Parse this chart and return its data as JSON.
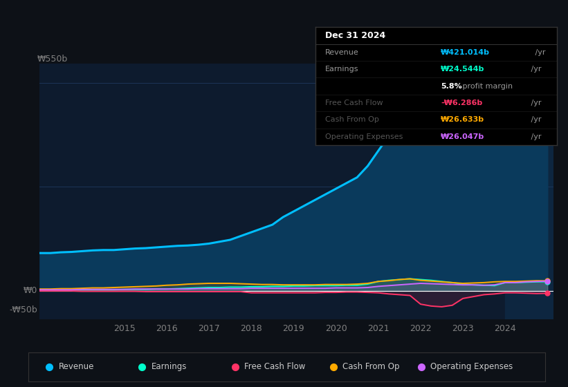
{
  "bg_color": "#0d1117",
  "plot_bg_color": "#0d1b2e",
  "grid_color": "#1e3a5f",
  "text_color": "#808080",
  "title_color": "#ffffff",
  "years": [
    2013.0,
    2013.25,
    2013.5,
    2013.75,
    2014.0,
    2014.25,
    2014.5,
    2014.75,
    2015.0,
    2015.25,
    2015.5,
    2015.75,
    2016.0,
    2016.25,
    2016.5,
    2016.75,
    2017.0,
    2017.25,
    2017.5,
    2017.75,
    2018.0,
    2018.25,
    2018.5,
    2018.75,
    2019.0,
    2019.25,
    2019.5,
    2019.75,
    2020.0,
    2020.25,
    2020.5,
    2020.75,
    2021.0,
    2021.25,
    2021.5,
    2021.75,
    2022.0,
    2022.25,
    2022.5,
    2022.75,
    2023.0,
    2023.25,
    2023.5,
    2023.75,
    2024.0,
    2024.25,
    2024.5,
    2024.75,
    2025.0
  ],
  "revenue": [
    100,
    100,
    102,
    103,
    105,
    107,
    108,
    108,
    110,
    112,
    113,
    115,
    117,
    119,
    120,
    122,
    125,
    130,
    135,
    145,
    155,
    165,
    175,
    195,
    210,
    225,
    240,
    255,
    270,
    285,
    300,
    330,
    370,
    410,
    450,
    500,
    560,
    570,
    550,
    510,
    460,
    440,
    430,
    420,
    400,
    400,
    405,
    415,
    421
  ],
  "earnings": [
    2,
    2,
    2,
    2,
    3,
    3,
    3,
    3,
    4,
    4,
    4,
    5,
    5,
    6,
    7,
    8,
    9,
    9,
    10,
    10,
    11,
    11,
    12,
    12,
    13,
    13,
    14,
    14,
    14,
    15,
    15,
    18,
    25,
    28,
    30,
    32,
    30,
    28,
    25,
    22,
    18,
    16,
    15,
    14,
    22,
    22,
    23,
    24,
    24.5
  ],
  "free_cash_flow": [
    0,
    0,
    0,
    0,
    -1,
    -1,
    -1,
    -1,
    -1,
    -1,
    -2,
    -2,
    -2,
    -2,
    -2,
    -2,
    -2,
    -2,
    -2,
    -2,
    -5,
    -5,
    -5,
    -5,
    -5,
    -5,
    -5,
    -4,
    -4,
    -3,
    -3,
    -4,
    -5,
    -8,
    -10,
    -12,
    -35,
    -40,
    -42,
    -38,
    -20,
    -15,
    -10,
    -8,
    -5,
    -5,
    -6,
    -7,
    -6.3
  ],
  "cash_from_op": [
    5,
    5,
    6,
    6,
    7,
    8,
    8,
    9,
    10,
    11,
    12,
    13,
    15,
    16,
    18,
    19,
    20,
    20,
    20,
    19,
    18,
    17,
    17,
    16,
    16,
    16,
    16,
    17,
    17,
    17,
    18,
    20,
    25,
    27,
    30,
    32,
    28,
    26,
    24,
    22,
    20,
    21,
    22,
    24,
    25,
    25,
    26,
    27,
    26.6
  ],
  "operating_expenses": [
    3,
    3,
    3,
    3,
    4,
    4,
    4,
    4,
    4,
    5,
    5,
    5,
    5,
    5,
    5,
    6,
    6,
    6,
    6,
    6,
    7,
    7,
    7,
    7,
    7,
    7,
    7,
    7,
    8,
    8,
    8,
    9,
    12,
    14,
    16,
    18,
    20,
    19,
    18,
    17,
    16,
    16,
    15,
    16,
    22,
    22,
    24,
    25,
    26
  ],
  "revenue_color": "#00bfff",
  "earnings_color": "#00ffcc",
  "fcf_color": "#ff3366",
  "cashop_color": "#ffaa00",
  "opex_color": "#cc66ff",
  "revenue_fill_color": "#0a3a5c",
  "ylim": [
    -75,
    600
  ],
  "xlim": [
    2013.0,
    2025.15
  ],
  "xtick_years": [
    2015,
    2016,
    2017,
    2018,
    2019,
    2020,
    2021,
    2022,
    2023,
    2024
  ],
  "highlight_x_start": 2024.0,
  "highlight_x_end": 2025.15,
  "highlight_color": "#0d2640",
  "legend_items": [
    {
      "label": "Revenue",
      "color": "#00bfff"
    },
    {
      "label": "Earnings",
      "color": "#00ffcc"
    },
    {
      "label": "Free Cash Flow",
      "color": "#ff3366"
    },
    {
      "label": "Cash From Op",
      "color": "#ffaa00"
    },
    {
      "label": "Operating Expenses",
      "color": "#cc66ff"
    }
  ],
  "tooltip_title": "Dec 31 2024",
  "tooltip_rows": [
    {
      "label": "Revenue",
      "value": "₩421.014b /yr",
      "color": "#00bfff",
      "dimlabel": false
    },
    {
      "label": "Earnings",
      "value": "₩24.544b /yr",
      "color": "#00ffcc",
      "dimlabel": false
    },
    {
      "label": "",
      "value": "5.8% profit margin",
      "color": "#ffffff",
      "dimlabel": false
    },
    {
      "label": "Free Cash Flow",
      "value": "-₩6.286b /yr",
      "color": "#ff3366",
      "dimlabel": true
    },
    {
      "label": "Cash From Op",
      "value": "₩26.633b /yr",
      "color": "#ffaa00",
      "dimlabel": true
    },
    {
      "label": "Operating Expenses",
      "value": "₩26.047b /yr",
      "color": "#cc66ff",
      "dimlabel": true
    }
  ]
}
